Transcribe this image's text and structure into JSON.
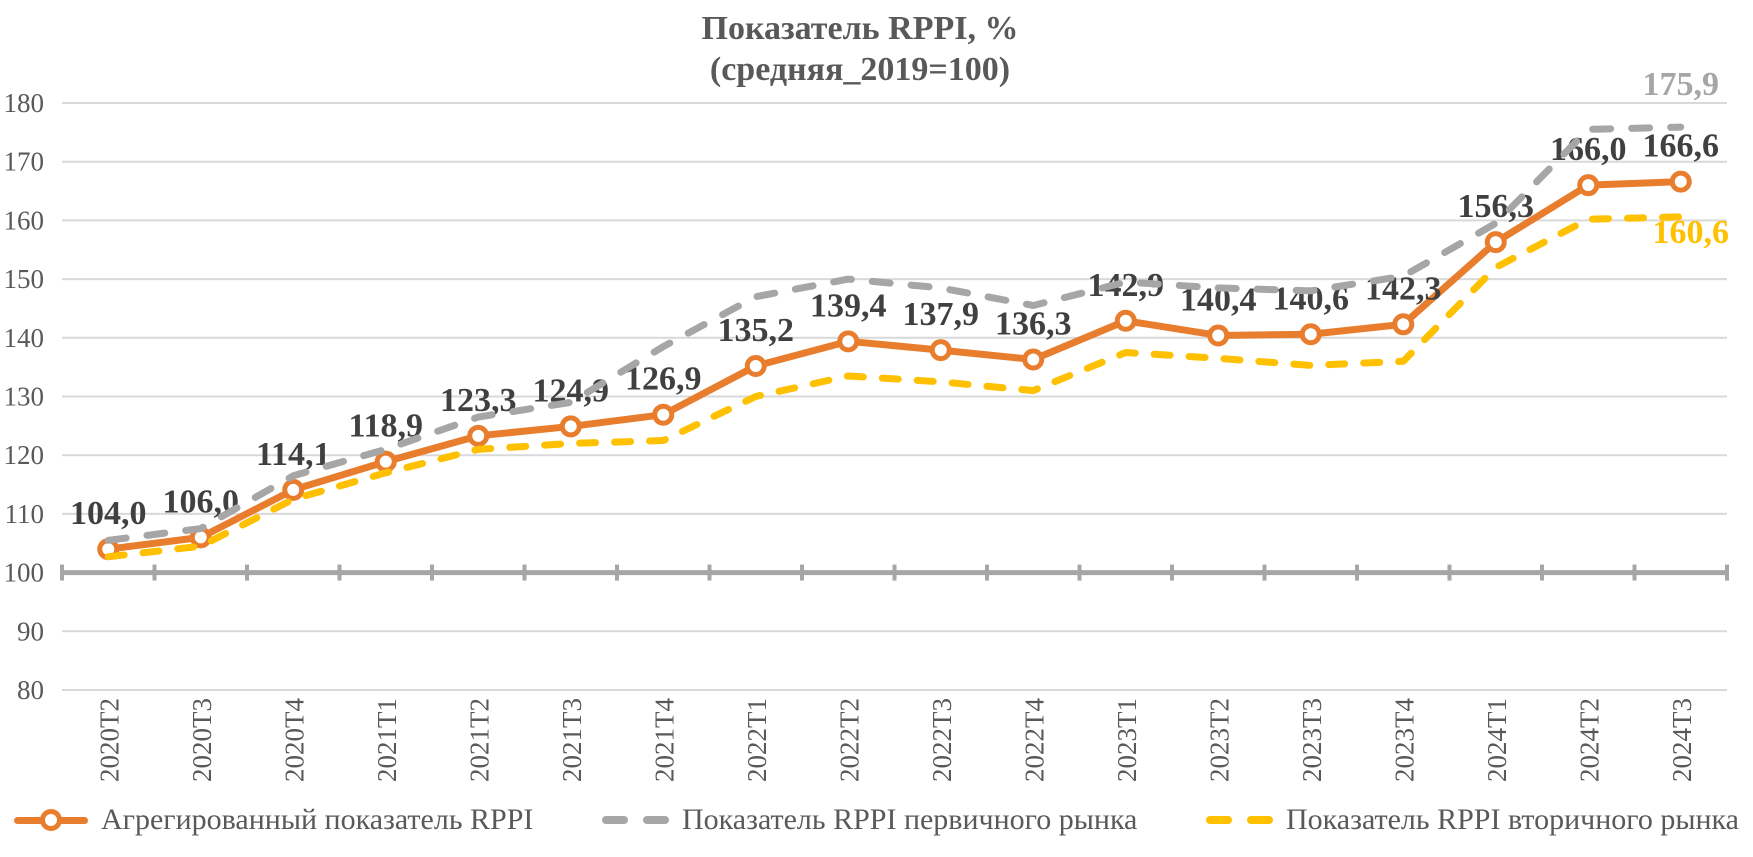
{
  "title": "Показатель RPPI, %",
  "subtitle": "(средняя_2019=100)",
  "colors": {
    "aggregate": "#E87D2D",
    "primary": "#A6A6A6",
    "secondary": "#FFC000",
    "grid": "#D9D9D9",
    "axis_line": "#A6A6A6",
    "axis_text": "#595959",
    "title_text": "#595959",
    "data_label": "#404040",
    "background": "#FFFFFF"
  },
  "chart_data": {
    "type": "line",
    "title": "Показатель RPPI, %",
    "subtitle": "(средняя_2019=100)",
    "categories": [
      "2020T2",
      "2020T3",
      "2020T4",
      "2021T1",
      "2021T2",
      "2021T3",
      "2021T4",
      "2022T1",
      "2022T2",
      "2022T3",
      "2022T4",
      "2023T1",
      "2023T2",
      "2023T3",
      "2023T4",
      "2024T1",
      "2024T2",
      "2024T3"
    ],
    "series": [
      {
        "name": "Агрегированный показатель RPPI",
        "color_key": "aggregate",
        "line_style": "solid",
        "marker": "circle-open",
        "data_labels": "all",
        "values": [
          104.0,
          106.0,
          114.1,
          118.9,
          123.3,
          124.9,
          126.9,
          135.2,
          139.4,
          137.9,
          136.3,
          142.9,
          140.4,
          140.6,
          142.3,
          156.3,
          166.0,
          166.6
        ]
      },
      {
        "name": "Показатель RPPI первичного рынка",
        "color_key": "primary",
        "line_style": "dashed",
        "marker": "none",
        "data_labels": "last",
        "end_label": "175,9",
        "values": [
          105.5,
          107.5,
          116.5,
          121.0,
          126.5,
          129.0,
          138.5,
          147.0,
          150.0,
          148.5,
          145.5,
          149.5,
          148.5,
          148.0,
          150.5,
          159.5,
          175.5,
          175.9
        ]
      },
      {
        "name": "Показатель RPPI вторичного рынка",
        "color_key": "secondary",
        "line_style": "dashed",
        "marker": "none",
        "data_labels": "last",
        "end_label": "160,6",
        "values": [
          102.7,
          104.5,
          112.5,
          117.0,
          121.0,
          122.0,
          122.5,
          130.0,
          133.5,
          132.5,
          131.0,
          137.5,
          136.5,
          135.3,
          136.0,
          152.0,
          160.2,
          160.6
        ]
      }
    ],
    "ylim": [
      80,
      180
    ],
    "yticks": [
      180,
      170,
      160,
      150,
      140,
      130,
      120,
      110,
      100,
      90,
      80
    ],
    "category_axis_at": 100,
    "grid": "horizontal",
    "legend_position": "bottom"
  },
  "legend": {
    "items": [
      {
        "label": "Агрегированный показатель RPPI",
        "color_key": "aggregate",
        "sample": "solid-line-with-marker"
      },
      {
        "label": "Показатель RPPI первичного рынка",
        "color_key": "primary",
        "sample": "dashed-line"
      },
      {
        "label": "Показатель RPPI вторичного рынка",
        "color_key": "secondary",
        "sample": "dashed-line"
      }
    ]
  }
}
